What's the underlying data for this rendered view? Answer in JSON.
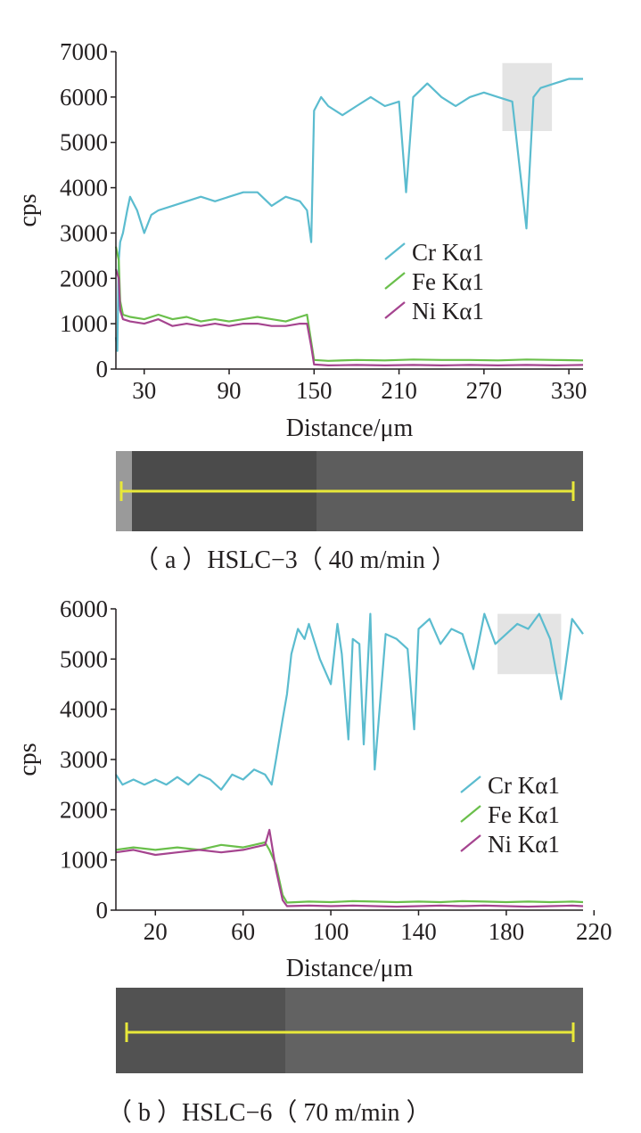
{
  "chart_data": [
    {
      "type": "line",
      "xlabel": "Distance/μm",
      "ylabel": "cps",
      "xlim": [
        10,
        340
      ],
      "ylim": [
        0,
        7000
      ],
      "xticks": [
        30,
        90,
        150,
        210,
        270,
        330
      ],
      "yticks": [
        0,
        1000,
        2000,
        3000,
        4000,
        5000,
        6000,
        7000
      ],
      "legend_position": "right",
      "caption": "（ a ）HSLC−3（ 40 m/min ）",
      "series": [
        {
          "name": "Cr Kα1",
          "color": "#5bbccf",
          "x": [
            10,
            11,
            12,
            13,
            15,
            18,
            20,
            25,
            30,
            35,
            40,
            50,
            60,
            70,
            80,
            90,
            100,
            110,
            120,
            130,
            140,
            145,
            148,
            150,
            155,
            160,
            170,
            180,
            190,
            200,
            210,
            215,
            220,
            230,
            240,
            250,
            260,
            270,
            280,
            290,
            300,
            305,
            310,
            320,
            330,
            340
          ],
          "y": [
            700,
            400,
            2400,
            2800,
            3000,
            3500,
            3800,
            3500,
            3000,
            3400,
            3500,
            3600,
            3700,
            3800,
            3700,
            3800,
            3900,
            3900,
            3600,
            3800,
            3700,
            3500,
            2800,
            5700,
            6000,
            5800,
            5600,
            5800,
            6000,
            5800,
            5900,
            3900,
            6000,
            6300,
            6000,
            5800,
            6000,
            6100,
            6000,
            5900,
            3100,
            6000,
            6200,
            6300,
            6400,
            6400
          ]
        },
        {
          "name": "Fe Kα1",
          "color": "#6abf4b",
          "x": [
            10,
            12,
            13,
            15,
            20,
            30,
            40,
            50,
            60,
            70,
            80,
            90,
            100,
            110,
            120,
            130,
            140,
            145,
            148,
            150,
            160,
            180,
            200,
            220,
            240,
            260,
            280,
            300,
            320,
            340
          ],
          "y": [
            2700,
            2400,
            1500,
            1200,
            1150,
            1100,
            1200,
            1100,
            1150,
            1050,
            1100,
            1050,
            1100,
            1150,
            1100,
            1050,
            1150,
            1200,
            600,
            200,
            180,
            200,
            190,
            210,
            200,
            200,
            190,
            210,
            200,
            190
          ]
        },
        {
          "name": "Ni Kα1",
          "color": "#a5448f",
          "x": [
            10,
            12,
            13,
            15,
            20,
            30,
            40,
            50,
            60,
            70,
            80,
            90,
            100,
            110,
            120,
            130,
            140,
            145,
            148,
            150,
            160,
            180,
            200,
            220,
            240,
            260,
            280,
            300,
            320,
            340
          ],
          "y": [
            2200,
            2000,
            1300,
            1100,
            1050,
            1000,
            1100,
            950,
            1000,
            950,
            1000,
            950,
            1000,
            1000,
            950,
            950,
            1000,
            1000,
            500,
            100,
            80,
            90,
            80,
            90,
            80,
            90,
            80,
            90,
            80,
            90
          ]
        }
      ]
    },
    {
      "type": "line",
      "xlabel": "Distance/μm",
      "ylabel": "cps",
      "xlim": [
        2,
        215
      ],
      "ylim": [
        0,
        6000
      ],
      "xticks": [
        20,
        60,
        100,
        140,
        180,
        220
      ],
      "yticks": [
        0,
        1000,
        2000,
        3000,
        4000,
        5000,
        6000
      ],
      "legend_position": "right",
      "caption": "（ b ）HSLC−6（ 70 m/min ）",
      "series": [
        {
          "name": "Cr Kα1",
          "color": "#5bbccf",
          "x": [
            2,
            5,
            10,
            15,
            20,
            25,
            30,
            35,
            40,
            45,
            50,
            55,
            60,
            65,
            70,
            73,
            75,
            78,
            80,
            82,
            85,
            88,
            90,
            95,
            100,
            103,
            105,
            108,
            110,
            113,
            115,
            118,
            120,
            125,
            130,
            135,
            138,
            140,
            145,
            150,
            155,
            160,
            165,
            170,
            175,
            180,
            185,
            190,
            195,
            200,
            205,
            210,
            215
          ],
          "y": [
            2700,
            2500,
            2600,
            2500,
            2600,
            2500,
            2650,
            2500,
            2700,
            2600,
            2400,
            2700,
            2600,
            2800,
            2700,
            2500,
            3000,
            3800,
            4300,
            5100,
            5600,
            5400,
            5700,
            5000,
            4500,
            5700,
            5100,
            3400,
            5400,
            5300,
            3300,
            5900,
            2800,
            5500,
            5400,
            5200,
            3600,
            5600,
            5800,
            5300,
            5600,
            5500,
            4800,
            5900,
            5300,
            5500,
            5700,
            5600,
            5900,
            5400,
            4200,
            5800,
            5500
          ]
        },
        {
          "name": "Fe Kα1",
          "color": "#6abf4b",
          "x": [
            2,
            10,
            20,
            30,
            40,
            50,
            60,
            65,
            70,
            72,
            75,
            78,
            80,
            90,
            100,
            110,
            120,
            130,
            140,
            150,
            160,
            170,
            180,
            190,
            200,
            210,
            215
          ],
          "y": [
            1200,
            1250,
            1200,
            1250,
            1200,
            1300,
            1250,
            1300,
            1350,
            1200,
            900,
            300,
            150,
            170,
            160,
            180,
            170,
            160,
            170,
            160,
            180,
            170,
            160,
            170,
            160,
            170,
            160
          ]
        },
        {
          "name": "Ni Kα1",
          "color": "#a5448f",
          "x": [
            2,
            10,
            20,
            30,
            40,
            50,
            60,
            65,
            70,
            72,
            75,
            78,
            80,
            90,
            100,
            110,
            120,
            130,
            140,
            150,
            160,
            170,
            180,
            190,
            200,
            210,
            215
          ],
          "y": [
            1150,
            1200,
            1100,
            1150,
            1200,
            1150,
            1200,
            1250,
            1300,
            1600,
            800,
            200,
            80,
            90,
            80,
            90,
            80,
            70,
            80,
            90,
            80,
            90,
            80,
            70,
            80,
            90,
            80
          ]
        }
      ]
    }
  ]
}
